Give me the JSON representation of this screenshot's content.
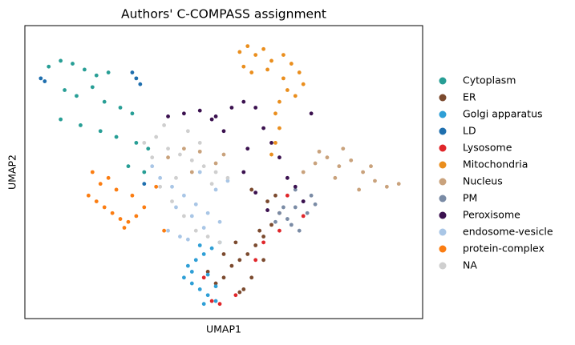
{
  "chart_data": {
    "type": "scatter",
    "title": "Authors' C-COMPASS assignment",
    "xlabel": "UMAP1",
    "ylabel": "UMAP2",
    "xlim": [
      0,
      100
    ],
    "ylim": [
      0,
      100
    ],
    "series": [
      {
        "name": "Cytoplasm",
        "color": "#279e95",
        "x": [
          6,
          9,
          12,
          15,
          18,
          21,
          10,
          13,
          17,
          20,
          24,
          27,
          9,
          14,
          19,
          23,
          28,
          31,
          26,
          30
        ],
        "y": [
          86,
          88,
          87,
          85,
          83,
          84,
          78,
          76,
          79,
          74,
          72,
          70,
          68,
          66,
          64,
          62,
          60,
          58,
          52,
          50
        ]
      },
      {
        "name": "ER",
        "color": "#7b4a2e",
        "x": [
          46,
          48,
          50,
          52,
          54,
          56,
          58,
          60,
          62,
          64,
          55,
          57,
          59,
          61,
          53,
          57,
          60,
          50,
          54,
          63
        ],
        "y": [
          16,
          12,
          14,
          18,
          20,
          22,
          25,
          28,
          32,
          36,
          10,
          14,
          30,
          40,
          26,
          44,
          20,
          22,
          9,
          42
        ]
      },
      {
        "name": "Golgi apparatus",
        "color": "#2f9fd6",
        "x": [
          40,
          42,
          44,
          46,
          48,
          41,
          43,
          45,
          47,
          49,
          42,
          46,
          48,
          44,
          45
        ],
        "y": [
          14,
          12,
          10,
          8,
          6,
          18,
          20,
          22,
          24,
          26,
          16,
          15,
          11,
          25,
          5
        ]
      },
      {
        "name": "LD",
        "color": "#1f6fae",
        "x": [
          28,
          29,
          27,
          5,
          30,
          4
        ],
        "y": [
          82,
          80,
          84,
          81,
          46,
          82
        ]
      },
      {
        "name": "Lysosome",
        "color": "#e0262a",
        "x": [
          47,
          49,
          53,
          60,
          64,
          70,
          58,
          66,
          45
        ],
        "y": [
          6,
          5,
          8,
          26,
          30,
          35,
          20,
          42,
          14
        ]
      },
      {
        "name": "Mitochondria",
        "color": "#ea8e1d",
        "x": [
          54,
          56,
          58,
          60,
          62,
          55,
          57,
          61,
          65,
          67,
          69,
          70,
          66,
          68,
          63,
          64,
          63,
          62,
          64,
          65
        ],
        "y": [
          91,
          93,
          90,
          92,
          88,
          86,
          84,
          85,
          90,
          87,
          84,
          80,
          78,
          76,
          70,
          65,
          60,
          56,
          74,
          82
        ]
      },
      {
        "name": "Nucleus",
        "color": "#c9a27c",
        "x": [
          70,
          73,
          76,
          79,
          82,
          85,
          88,
          91,
          94,
          78,
          84,
          80,
          87,
          74,
          36,
          40,
          44,
          48,
          42,
          50
        ],
        "y": [
          50,
          53,
          55,
          52,
          54,
          50,
          47,
          45,
          46,
          48,
          44,
          58,
          52,
          57,
          55,
          58,
          57,
          53,
          50,
          56
        ]
      },
      {
        "name": "PM",
        "color": "#7a8ba5",
        "x": [
          64,
          66,
          68,
          70,
          72,
          67,
          69,
          71,
          65,
          73,
          68,
          63
        ],
        "y": [
          36,
          34,
          38,
          40,
          42,
          32,
          30,
          36,
          38,
          39,
          44,
          33
        ]
      },
      {
        "name": "Peroxisome",
        "color": "#3b114f",
        "x": [
          36,
          40,
          44,
          48,
          52,
          55,
          58,
          60,
          62,
          64,
          66,
          68,
          70,
          72,
          55,
          58,
          61,
          56,
          50,
          47
        ],
        "y": [
          69,
          70,
          71,
          69,
          72,
          74,
          72,
          65,
          60,
          55,
          48,
          45,
          40,
          70,
          50,
          43,
          37,
          58,
          64,
          68
        ]
      },
      {
        "name": "endosome-vesicle",
        "color": "#a9c6e6",
        "x": [
          32,
          34,
          37,
          40,
          43,
          46,
          49,
          36,
          39,
          42,
          45,
          48,
          51,
          38,
          44,
          41
        ],
        "y": [
          52,
          48,
          45,
          42,
          39,
          36,
          33,
          30,
          28,
          35,
          31,
          44,
          47,
          38,
          50,
          27
        ]
      },
      {
        "name": "protein-complex",
        "color": "#fb7d12",
        "x": [
          16,
          18,
          20,
          22,
          24,
          26,
          28,
          30,
          19,
          23,
          27,
          21,
          25,
          33,
          35,
          17
        ],
        "y": [
          42,
          40,
          38,
          36,
          34,
          33,
          35,
          38,
          46,
          44,
          42,
          48,
          31,
          45,
          30,
          50
        ]
      },
      {
        "name": "NA",
        "color": "#cfcfcf",
        "x": [
          30,
          33,
          36,
          39,
          42,
          45,
          48,
          51,
          34,
          37,
          40,
          43,
          46,
          49,
          35,
          41,
          47,
          32,
          38,
          44
        ],
        "y": [
          60,
          62,
          58,
          56,
          54,
          52,
          50,
          48,
          45,
          40,
          35,
          30,
          28,
          26,
          66,
          64,
          46,
          55,
          48,
          60
        ]
      }
    ]
  }
}
